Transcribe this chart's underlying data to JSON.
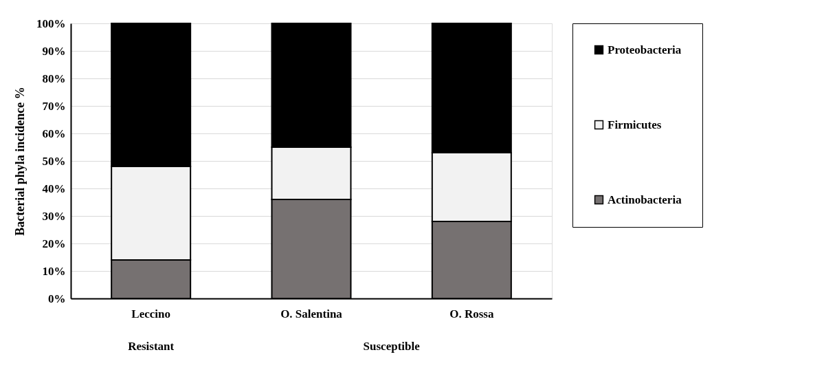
{
  "chart_data": {
    "type": "bar",
    "stacked": true,
    "ylabel": "Bacterial phyla incidence %",
    "categories": [
      "Leccino",
      "O. Salentina",
      "O. Rossa"
    ],
    "series": [
      {
        "name": "Actinobacteria",
        "color": "#767171",
        "values": [
          14,
          36,
          28
        ]
      },
      {
        "name": "Firmicutes",
        "color": "#f2f2f2",
        "values": [
          34,
          19,
          25
        ]
      },
      {
        "name": "Proteobacteria",
        "color": "#000000",
        "values": [
          52,
          45,
          47
        ]
      }
    ],
    "ylim": [
      0,
      100
    ],
    "yticks": [
      {
        "value": 0,
        "label": "0%"
      },
      {
        "value": 10,
        "label": "10%"
      },
      {
        "value": 20,
        "label": "20%"
      },
      {
        "value": 30,
        "label": "30%"
      },
      {
        "value": 40,
        "label": "40%"
      },
      {
        "value": 50,
        "label": "50%"
      },
      {
        "value": 60,
        "label": "60%"
      },
      {
        "value": 70,
        "label": "70%"
      },
      {
        "value": 80,
        "label": "80%"
      },
      {
        "value": 90,
        "label": "90%"
      },
      {
        "value": 100,
        "label": "100%"
      }
    ],
    "annotations": [
      "Resistant",
      "Susceptible"
    ],
    "grid": "y",
    "legend": "right"
  }
}
